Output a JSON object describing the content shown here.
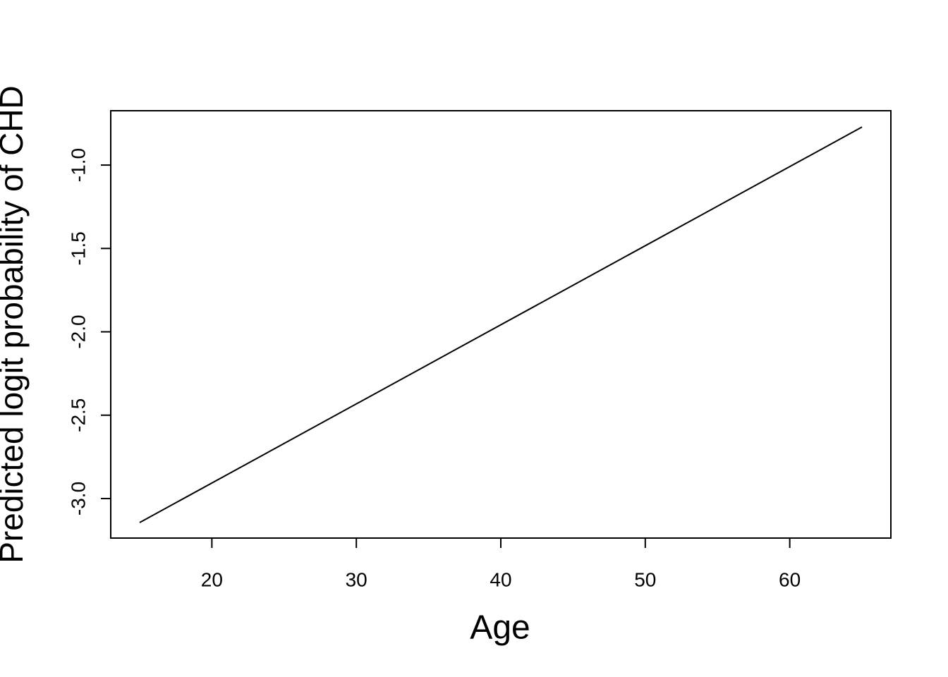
{
  "chart_data": {
    "type": "line",
    "x_label": "Age",
    "y_label": "Predicted logit probability of CHD",
    "x": [
      15,
      65
    ],
    "series": [
      {
        "color": "#000000",
        "values": [
          -3.144,
          -0.772
        ]
      }
    ],
    "xlim": [
      13,
      67
    ],
    "xticks": [
      20,
      30,
      40,
      50,
      60
    ],
    "ylim": [
      -3.237,
      -0.674
    ],
    "yticks": [
      {
        "value": -3,
        "label": "-3.0"
      },
      {
        "value": -2.5,
        "label": "-2.5"
      },
      {
        "value": -2,
        "label": "-2.0"
      },
      {
        "value": -1.5,
        "label": "-1.5"
      },
      {
        "value": -1,
        "label": "-1.0"
      }
    ]
  }
}
